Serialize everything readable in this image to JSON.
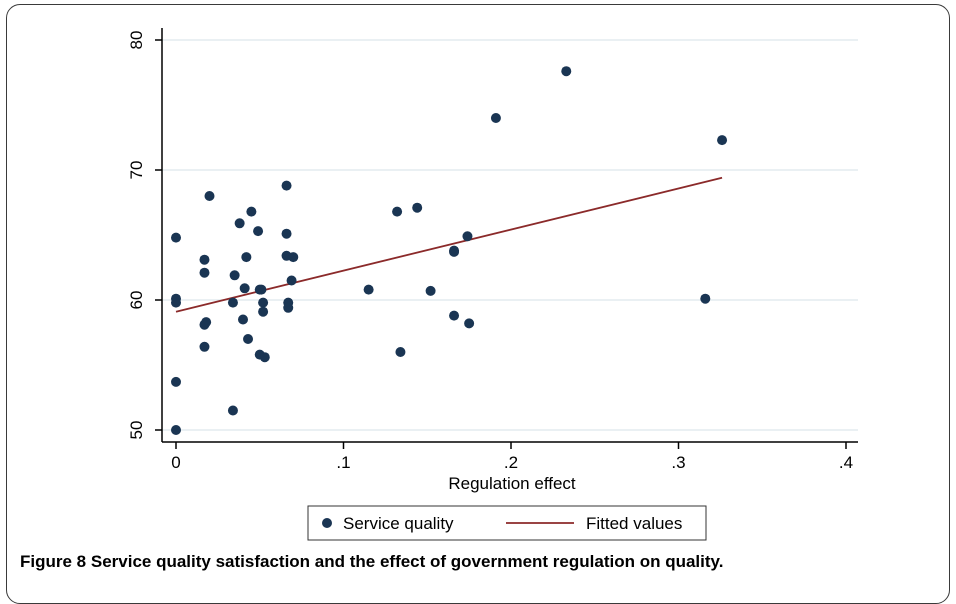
{
  "caption": {
    "label": "Figure 8",
    "title": "Service quality satisfaction and the effect of government regulation on quality."
  },
  "colors": {
    "points": "#1a3553",
    "fit_line": "#8b2a2a",
    "grid": "#e4ecef",
    "plot_bg": "#ffffff"
  },
  "chart_data": {
    "type": "scatter",
    "title": "",
    "xlabel": "Regulation effect",
    "ylabel": "",
    "xlim": [
      0,
      0.4
    ],
    "ylim": [
      50,
      80
    ],
    "x_ticks": [
      0,
      0.1,
      0.2,
      0.3,
      0.4
    ],
    "x_tick_labels": [
      "0",
      ".1",
      ".2",
      ".3",
      ".4"
    ],
    "y_ticks": [
      50,
      60,
      70,
      80
    ],
    "y_tick_labels": [
      "50",
      "60",
      "70",
      "80"
    ],
    "grid": "horizontal",
    "legend_position": "bottom",
    "series": [
      {
        "name": "Service quality",
        "kind": "scatter",
        "points": [
          [
            0.0,
            64.8
          ],
          [
            0.0,
            60.1
          ],
          [
            0.0,
            59.8
          ],
          [
            0.0,
            53.7
          ],
          [
            0.0,
            50.0
          ],
          [
            0.017,
            63.1
          ],
          [
            0.017,
            62.1
          ],
          [
            0.017,
            58.1
          ],
          [
            0.018,
            58.3
          ],
          [
            0.017,
            56.4
          ],
          [
            0.02,
            68.0
          ],
          [
            0.035,
            61.9
          ],
          [
            0.034,
            59.8
          ],
          [
            0.034,
            51.5
          ],
          [
            0.038,
            65.9
          ],
          [
            0.041,
            60.9
          ],
          [
            0.04,
            58.5
          ],
          [
            0.042,
            63.3
          ],
          [
            0.043,
            57.0
          ],
          [
            0.045,
            66.8
          ],
          [
            0.049,
            65.3
          ],
          [
            0.05,
            60.8
          ],
          [
            0.051,
            60.8
          ],
          [
            0.05,
            55.8
          ],
          [
            0.052,
            59.8
          ],
          [
            0.052,
            59.1
          ],
          [
            0.053,
            55.6
          ],
          [
            0.066,
            68.8
          ],
          [
            0.066,
            65.1
          ],
          [
            0.066,
            63.4
          ],
          [
            0.067,
            59.8
          ],
          [
            0.067,
            59.4
          ],
          [
            0.069,
            61.5
          ],
          [
            0.07,
            63.3
          ],
          [
            0.115,
            60.8
          ],
          [
            0.132,
            66.8
          ],
          [
            0.134,
            56.0
          ],
          [
            0.144,
            67.1
          ],
          [
            0.152,
            60.7
          ],
          [
            0.166,
            63.8
          ],
          [
            0.166,
            63.7
          ],
          [
            0.166,
            58.8
          ],
          [
            0.174,
            64.9
          ],
          [
            0.175,
            58.2
          ],
          [
            0.191,
            74.0
          ],
          [
            0.233,
            77.6
          ],
          [
            0.316,
            60.1
          ],
          [
            0.326,
            72.3
          ]
        ]
      },
      {
        "name": "Fitted values",
        "kind": "line",
        "points": [
          [
            0.0,
            59.1
          ],
          [
            0.326,
            69.4
          ]
        ]
      }
    ]
  }
}
